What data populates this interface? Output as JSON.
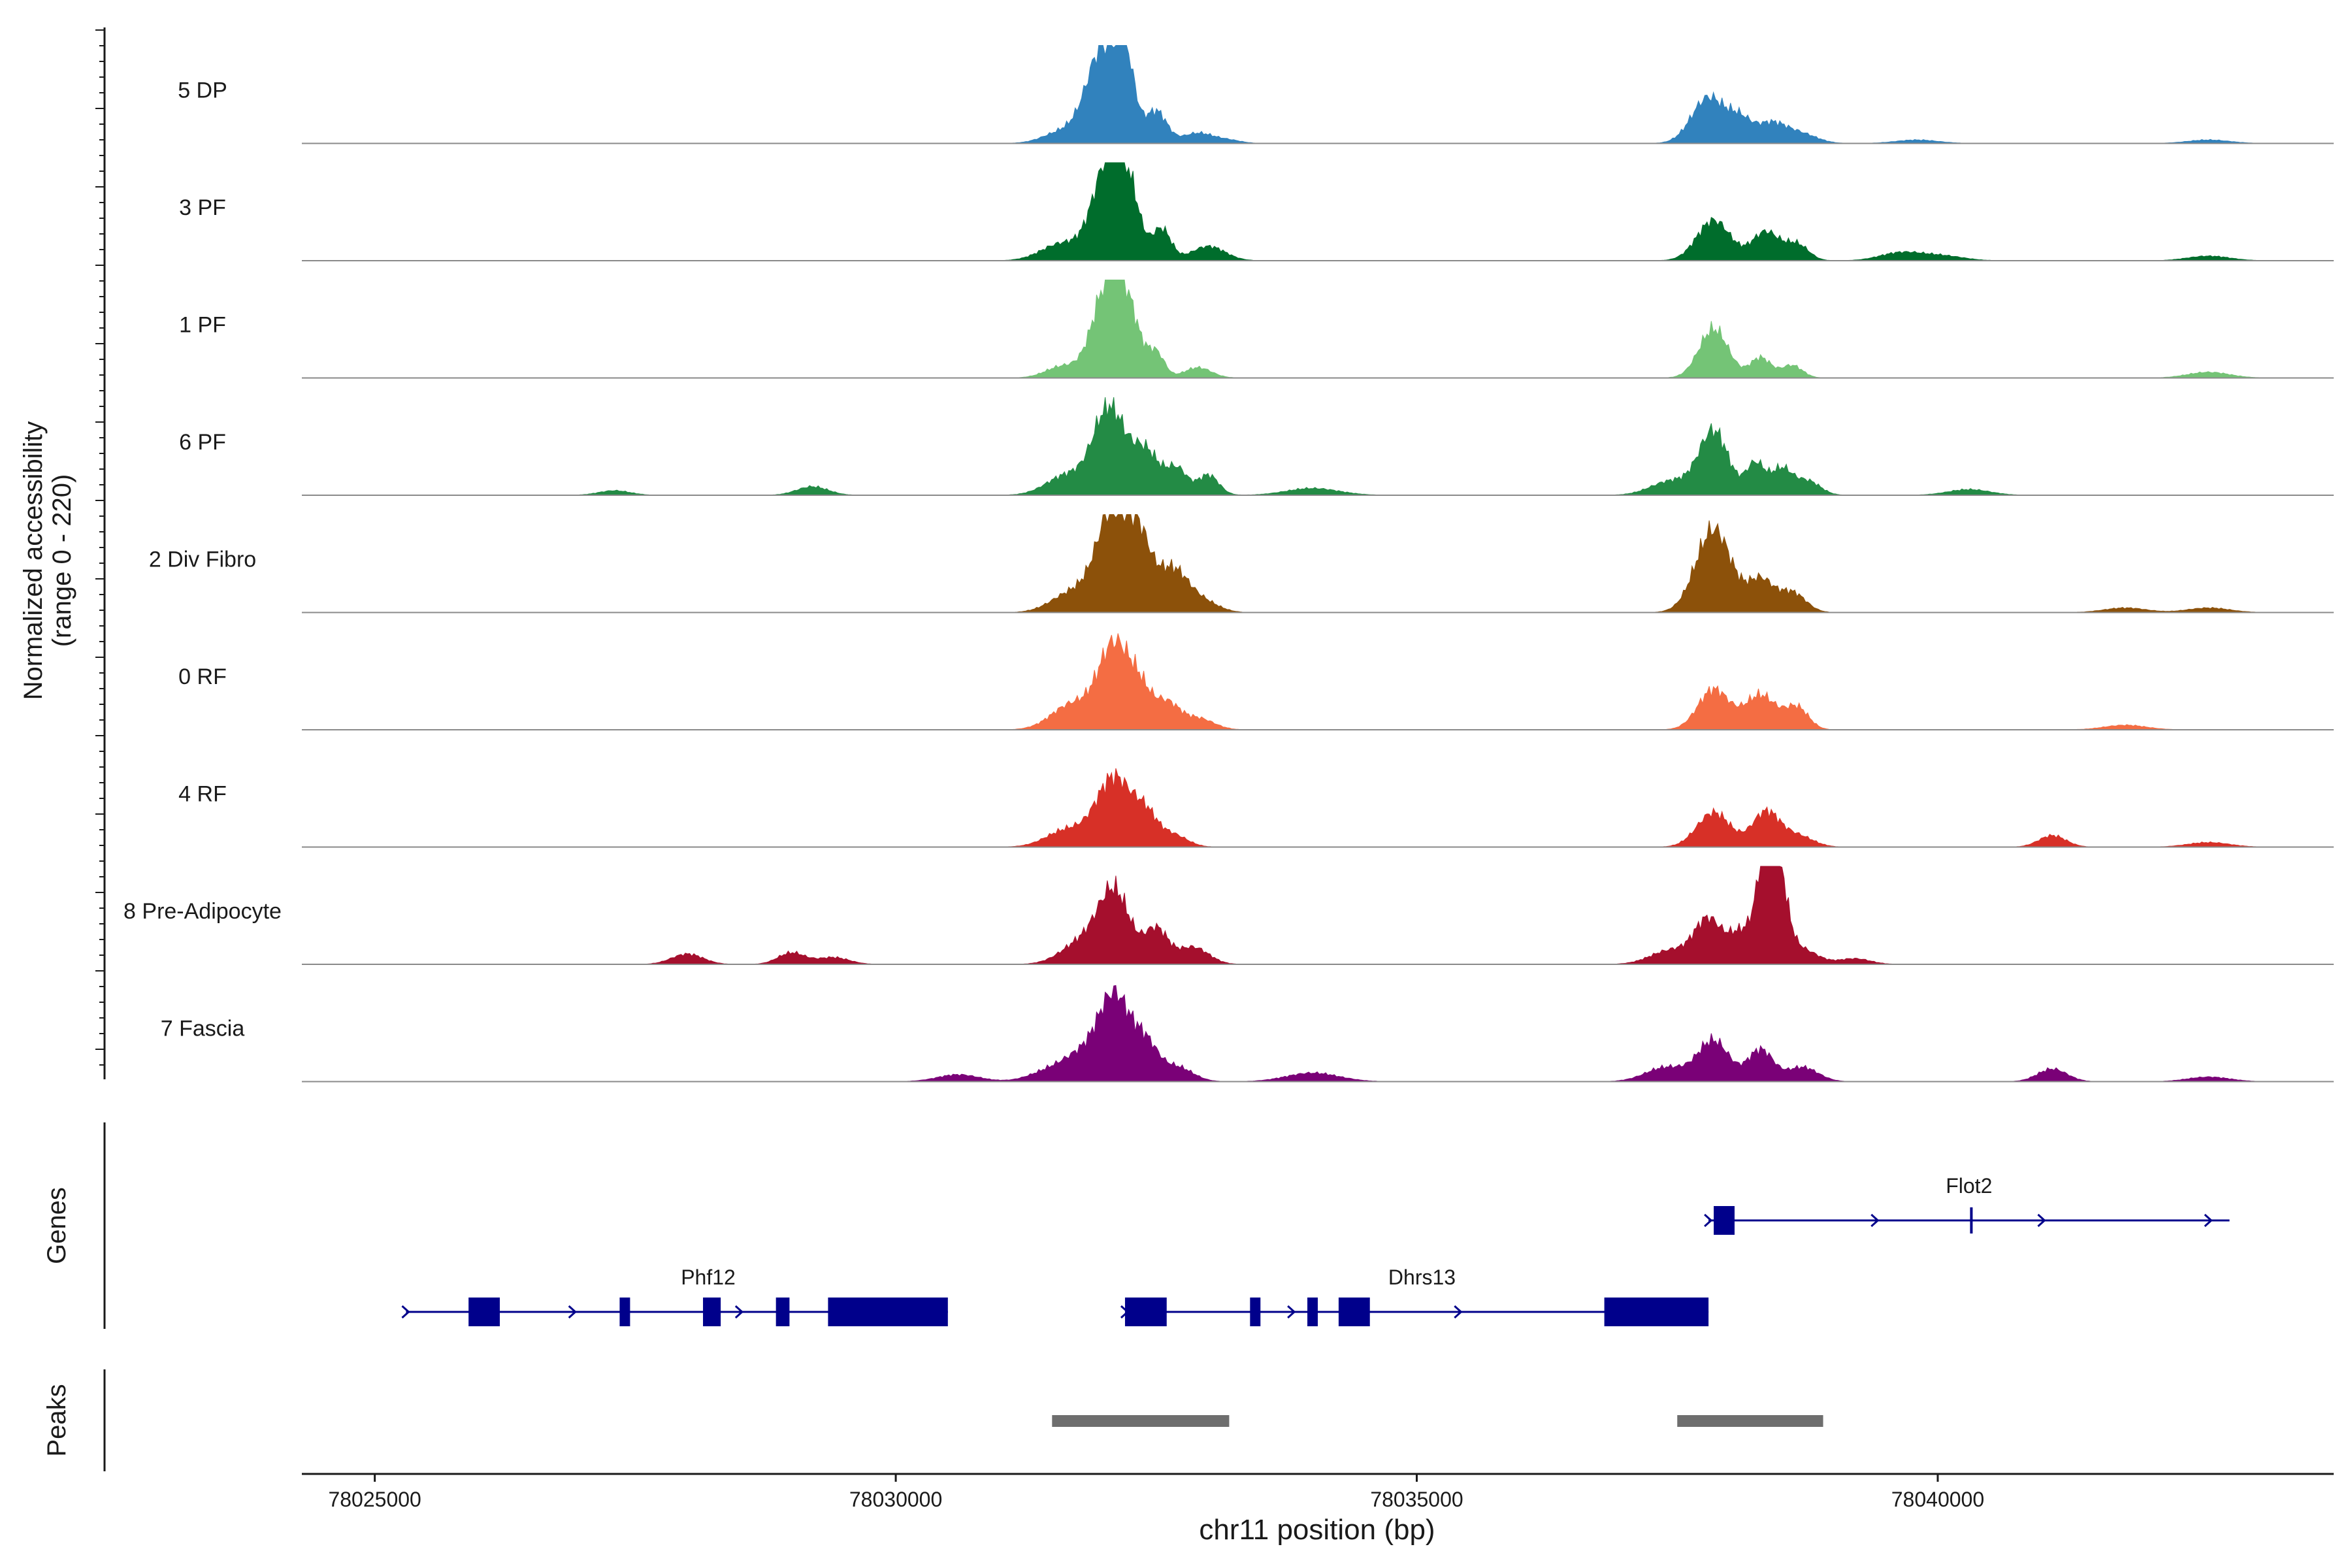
{
  "chart_data": {
    "type": "area",
    "title": "",
    "y_axis_label": "Normalized accessibility",
    "y_axis_range_label": "(range 0 - 220)",
    "ylim": [
      0,
      220
    ],
    "xlabel": "chr11 position (bp)",
    "xlim": [
      78024300,
      78043800
    ],
    "x_ticks": [
      78025000,
      78030000,
      78035000,
      78040000
    ],
    "x_tick_labels": [
      "78025000",
      "78030000",
      "78035000",
      "78040000"
    ],
    "tracks": [
      {
        "name": "5 DP",
        "color": "#3182bd",
        "peaks": [
          [
            78031600,
            20,
            180
          ],
          [
            78032000,
            170,
            160
          ],
          [
            78032200,
            110,
            90
          ],
          [
            78032500,
            55,
            100
          ],
          [
            78032900,
            18,
            150
          ],
          [
            78033200,
            5,
            120
          ],
          [
            78037800,
            80,
            160
          ],
          [
            78038100,
            35,
            110
          ],
          [
            78038400,
            35,
            150
          ],
          [
            78038700,
            15,
            150
          ],
          [
            78039800,
            6,
            200
          ],
          [
            78042600,
            6,
            200
          ]
        ]
      },
      {
        "name": "3 PF",
        "color": "#006d2c",
        "peaks": [
          [
            78031600,
            30,
            200
          ],
          [
            78032050,
            175,
            150
          ],
          [
            78032250,
            80,
            100
          ],
          [
            78032550,
            55,
            90
          ],
          [
            78033000,
            25,
            160
          ],
          [
            78037850,
            70,
            160
          ],
          [
            78038350,
            50,
            130
          ],
          [
            78038650,
            28,
            110
          ],
          [
            78039650,
            14,
            200
          ],
          [
            78040050,
            8,
            200
          ],
          [
            78042600,
            8,
            200
          ]
        ]
      },
      {
        "name": "1 PF",
        "color": "#74c476",
        "peaks": [
          [
            78031600,
            20,
            160
          ],
          [
            78032050,
            170,
            150
          ],
          [
            78032250,
            70,
            110
          ],
          [
            78032500,
            42,
            80
          ],
          [
            78032900,
            18,
            130
          ],
          [
            78037850,
            85,
            140
          ],
          [
            78038300,
            35,
            100
          ],
          [
            78038600,
            22,
            100
          ],
          [
            78042600,
            10,
            200
          ]
        ]
      },
      {
        "name": "6 PF",
        "color": "#238b45",
        "peaks": [
          [
            78031650,
            35,
            200
          ],
          [
            78032050,
            150,
            150
          ],
          [
            78032400,
            75,
            130
          ],
          [
            78032700,
            45,
            100
          ],
          [
            78033000,
            35,
            100
          ],
          [
            78034000,
            12,
            250
          ],
          [
            78037450,
            25,
            200
          ],
          [
            78037850,
            110,
            140
          ],
          [
            78038250,
            55,
            90
          ],
          [
            78038500,
            45,
            100
          ],
          [
            78038750,
            25,
            120
          ],
          [
            78040300,
            10,
            200
          ],
          [
            78027300,
            8,
            150
          ],
          [
            78029200,
            15,
            150
          ]
        ]
      },
      {
        "name": "2 Div Fibro",
        "color": "#8c510a",
        "peaks": [
          [
            78031700,
            35,
            200
          ],
          [
            78032100,
            185,
            160
          ],
          [
            78032350,
            90,
            110
          ],
          [
            78032650,
            75,
            150
          ],
          [
            78032950,
            18,
            150
          ],
          [
            78037850,
            145,
            170
          ],
          [
            78038300,
            55,
            120
          ],
          [
            78038600,
            35,
            130
          ],
          [
            78041800,
            8,
            200
          ],
          [
            78042600,
            8,
            200
          ]
        ]
      },
      {
        "name": "0 RF",
        "color": "#f46d43",
        "peaks": [
          [
            78031700,
            45,
            200
          ],
          [
            78032100,
            145,
            150
          ],
          [
            78032350,
            55,
            110
          ],
          [
            78032600,
            45,
            120
          ],
          [
            78032900,
            20,
            150
          ],
          [
            78037850,
            70,
            150
          ],
          [
            78038300,
            60,
            150
          ],
          [
            78038650,
            38,
            110
          ],
          [
            78041800,
            8,
            200
          ]
        ]
      },
      {
        "name": "4 RF",
        "color": "#d73027",
        "peaks": [
          [
            78031650,
            30,
            200
          ],
          [
            78032100,
            120,
            170
          ],
          [
            78032400,
            45,
            110
          ],
          [
            78032650,
            22,
            140
          ],
          [
            78037850,
            60,
            160
          ],
          [
            78038350,
            60,
            130
          ],
          [
            78038650,
            20,
            150
          ],
          [
            78041100,
            20,
            130
          ],
          [
            78042600,
            8,
            200
          ]
        ]
      },
      {
        "name": "8 Pre-Adipocyte",
        "color": "#a50f2d",
        "peaks": [
          [
            78028000,
            18,
            150
          ],
          [
            78029000,
            20,
            130
          ],
          [
            78029400,
            12,
            150
          ],
          [
            78031800,
            40,
            200
          ],
          [
            78032100,
            120,
            150
          ],
          [
            78032500,
            60,
            110
          ],
          [
            78032850,
            30,
            150
          ],
          [
            78037450,
            25,
            200
          ],
          [
            78037800,
            75,
            130
          ],
          [
            78038100,
            50,
            110
          ],
          [
            78038400,
            260,
            110
          ],
          [
            78038700,
            25,
            150
          ],
          [
            78039200,
            10,
            150
          ]
        ]
      },
      {
        "name": "7 Fascia",
        "color": "#7a0177",
        "peaks": [
          [
            78030600,
            12,
            200
          ],
          [
            78031500,
            20,
            200
          ],
          [
            78031800,
            40,
            170
          ],
          [
            78032100,
            145,
            150
          ],
          [
            78032400,
            60,
            120
          ],
          [
            78032700,
            25,
            150
          ],
          [
            78034000,
            15,
            250
          ],
          [
            78037400,
            25,
            200
          ],
          [
            78037850,
            70,
            150
          ],
          [
            78038300,
            55,
            120
          ],
          [
            78038700,
            25,
            150
          ],
          [
            78041100,
            22,
            140
          ],
          [
            78042600,
            8,
            200
          ]
        ]
      }
    ],
    "genes_label": "Genes",
    "genes": [
      {
        "name": "Phf12",
        "label_x": 78028200,
        "row": 1,
        "start": 78025300,
        "end": 78030500,
        "strand": "+",
        "exons": [
          [
            78025900,
            78026200
          ],
          [
            78027350,
            78027450
          ],
          [
            78028150,
            78028320
          ],
          [
            78028850,
            78028980
          ],
          [
            78029350,
            78030500
          ]
        ]
      },
      {
        "name": "Dhrs13",
        "label_x": 78035050,
        "row": 1,
        "start": 78032200,
        "end": 78037800,
        "strand": "+",
        "exons": [
          [
            78032200,
            78032600
          ],
          [
            78033400,
            78033500
          ],
          [
            78033950,
            78034050
          ],
          [
            78034250,
            78034550
          ],
          [
            78036800,
            78037800
          ]
        ]
      },
      {
        "name": "Flot2",
        "label_x": 78040300,
        "row": 0,
        "start": 78037800,
        "end": 78042800,
        "strand": "+",
        "exons": [
          [
            78037850,
            78038050
          ],
          [
            78040310,
            78040320
          ]
        ]
      }
    ],
    "peaks_label": "Peaks",
    "peak_regions": [
      [
        78031500,
        78033200
      ],
      [
        78037500,
        78038900
      ]
    ]
  }
}
